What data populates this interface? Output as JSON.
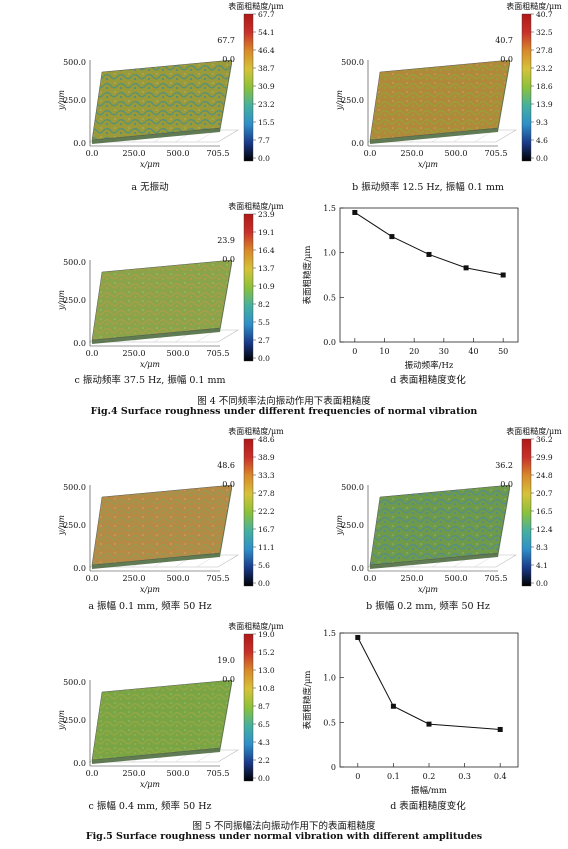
{
  "fig4": {
    "title_cn": "图 4    不同频率法向振动作用下表面粗糙度",
    "title_en": "Fig.4  Surface roughness under different frequencies of normal vibration"
  },
  "fig5": {
    "title_cn": "图 5    不同振幅法向振动作用下的表面粗糙度",
    "title_en": "Fig.5  Surface roughness under normal vibration with different amplitudes"
  },
  "surface_axes": {
    "x_label": "x/μm",
    "y_label": "y/μm",
    "x_ticks": [
      "0.0",
      "250.0",
      "500.0",
      "705.5"
    ],
    "y_ticks": [
      "0.0",
      "250.0",
      "500.0"
    ],
    "z_min": "0.0",
    "colorbar_title": "表面粗糙度/μm"
  },
  "surfaces": [
    {
      "id": "4a",
      "caption": "a  无振动",
      "zmax": "67.7",
      "cb_ticks": [
        "67.7",
        "54.1",
        "46.4",
        "38.7",
        "30.9",
        "23.2",
        "15.5",
        "7.7",
        "0.0"
      ],
      "base_color": "#9a9a3a",
      "accent": "#3f8d8d"
    },
    {
      "id": "4b",
      "caption": "b  振动频率 12.5 Hz, 振幅 0.1 mm",
      "zmax": "40.7",
      "cb_ticks": [
        "40.7",
        "32.5",
        "27.8",
        "23.2",
        "18.6",
        "13.9",
        "9.3",
        "4.6",
        "0.0"
      ],
      "base_color": "#b08a3a",
      "accent": "#8da83a"
    },
    {
      "id": "4c",
      "caption": "c  振动频率 37.5 Hz, 振幅 0.1 mm",
      "zmax": "23.9",
      "cb_ticks": [
        "23.9",
        "19.1",
        "16.4",
        "13.7",
        "10.9",
        "8.2",
        "5.5",
        "2.7",
        "0.0"
      ],
      "base_color": "#8aa44a",
      "accent": "#b89a4a"
    },
    {
      "id": "5a",
      "caption": "a  振幅 0.1 mm, 频率 50 Hz",
      "zmax": "48.6",
      "cb_ticks": [
        "48.6",
        "38.9",
        "33.3",
        "27.8",
        "22.2",
        "16.7",
        "11.1",
        "5.6",
        "0.0"
      ],
      "base_color": "#b58a45",
      "accent": "#8aa055"
    },
    {
      "id": "5b",
      "caption": "b  振幅 0.2 mm, 频率 50 Hz",
      "zmax": "36.2",
      "cb_ticks": [
        "36.2",
        "29.9",
        "24.8",
        "20.7",
        "16.5",
        "12.4",
        "8.3",
        "4.1",
        "0.0"
      ],
      "base_color": "#6f9a4a",
      "accent": "#4a8aa0"
    },
    {
      "id": "5c",
      "caption": "c  振幅 0.4 mm, 频率 50 Hz",
      "zmax": "19.0",
      "cb_ticks": [
        "19.0",
        "15.2",
        "13.0",
        "10.8",
        "8.7",
        "6.5",
        "4.3",
        "2.2",
        "0.0"
      ],
      "base_color": "#7aa544",
      "accent": "#a0a848"
    }
  ],
  "chart_data": [
    {
      "type": "line",
      "caption": "d  表面粗糙度变化",
      "xlabel": "振动频率/Hz",
      "ylabel": "表面粗糙度/μm",
      "x": [
        0,
        12.5,
        25,
        37.5,
        50
      ],
      "values": [
        1.45,
        1.18,
        0.98,
        0.83,
        0.75
      ],
      "xlim": [
        -5,
        55
      ],
      "ylim": [
        0,
        1.5
      ],
      "x_ticks": [
        "0",
        "10",
        "20",
        "30",
        "40",
        "50"
      ],
      "x_tick_vals": [
        0,
        10,
        20,
        30,
        40,
        50
      ],
      "y_ticks": [
        "0.0",
        "0.5",
        "1.0",
        "1.5"
      ],
      "y_tick_vals": [
        0,
        0.5,
        1.0,
        1.5
      ]
    },
    {
      "type": "line",
      "caption": "d  表面粗糙度变化",
      "xlabel": "振幅/mm",
      "ylabel": "表面粗糙度/μm",
      "x": [
        0,
        0.1,
        0.2,
        0.4
      ],
      "values": [
        1.45,
        0.68,
        0.48,
        0.42
      ],
      "xlim": [
        -0.05,
        0.45
      ],
      "ylim": [
        0,
        1.5
      ],
      "x_ticks": [
        "0",
        "0.1",
        "0.2",
        "0.3",
        "0.4"
      ],
      "x_tick_vals": [
        0,
        0.1,
        0.2,
        0.3,
        0.4
      ],
      "y_ticks": [
        "0",
        "0.5",
        "1.0",
        "1.5"
      ],
      "y_tick_vals": [
        0,
        0.5,
        1.0,
        1.5
      ]
    }
  ]
}
